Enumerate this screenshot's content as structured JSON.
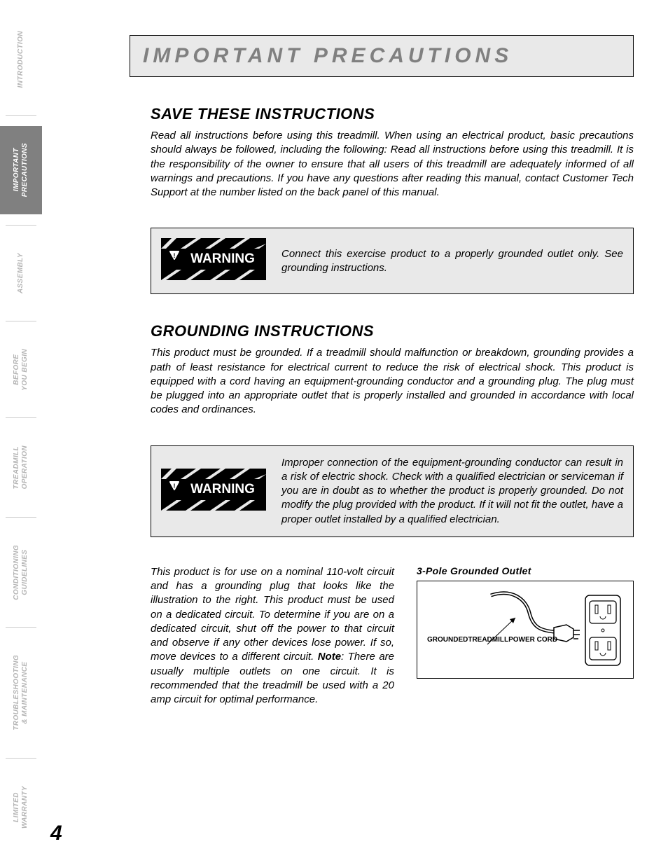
{
  "sidebar": {
    "tabs": [
      {
        "label": "INTRODUCTION",
        "active": false
      },
      {
        "label": "IMPORTANT\nPRECAUTIONS",
        "active": true
      },
      {
        "label": "ASSEMBLY",
        "active": false
      },
      {
        "label": "BEFORE\nYOU BEGIN",
        "active": false
      },
      {
        "label": "TREADMILL\nOPERATION",
        "active": false
      },
      {
        "label": "CONDITIONING\nGUIDELINES",
        "active": false
      },
      {
        "label": "TROUBLESHOOTING\n& MAINTENANCE",
        "active": false
      },
      {
        "label": "LIMITED\nWARRANTY",
        "active": false
      }
    ]
  },
  "title": "IMPORTANT PRECAUTIONS",
  "section1": {
    "heading": "SAVE THESE INSTRUCTIONS",
    "body": "Read all instructions before using this treadmill. When using an electrical product, basic precautions should always be followed, including the following: Read all instructions before using this treadmill. It is the responsibility of the owner to ensure that all users of this treadmill are adequately informed of all warnings and precautions. If you have any questions after reading this manual, contact Customer Tech Support at the number listed on the back panel of this manual."
  },
  "warning1": {
    "label": "WARNING",
    "text": "Connect this exercise product to a properly grounded outlet only. See grounding instructions."
  },
  "section2": {
    "heading": "GROUNDING INSTRUCTIONS",
    "body": "This product must be grounded. If a treadmill should malfunction or breakdown, grounding provides a path of least resistance for electrical current to reduce the risk of electrical shock. This product is equipped with a cord having an equipment-grounding conductor and a grounding plug. The plug must be plugged into an appropriate outlet that is properly installed and grounded in accordance with local codes and ordinances."
  },
  "warning2": {
    "label": "WARNING",
    "text": "Improper connection of the equipment-grounding conductor can result in a risk of electric shock. Check with a qualified electrician or serviceman if you are in doubt as to whether the product is properly grounded. Do not modify the plug provided with the product. If it will not fit the outlet, have a proper outlet installed by a qualified electrician."
  },
  "section3": {
    "body_pre": "This product is for use on a nominal 110-volt circuit and has a grounding plug that looks like the illustration to the right. This product must be used on a dedicated circuit. To determine if you are on a dedicated circuit, shut off the power to that circuit and observe if any other devices lose power. If so, move devices to a different circuit. ",
    "note_label": "Note",
    "body_post": ": There are usually multiple outlets on one circuit. It is recommended that the treadmill be used with a 20 amp circuit for optimal performance."
  },
  "figure": {
    "title": "3-Pole Grounded Outlet",
    "cord_label": "GROUNDED\nTREADMILL\nPOWER CORD"
  },
  "pagenum": "4",
  "colors": {
    "title_grey": "#808080",
    "tab_grey": "#b5b5b5",
    "box_bg": "#e9e9e9"
  }
}
